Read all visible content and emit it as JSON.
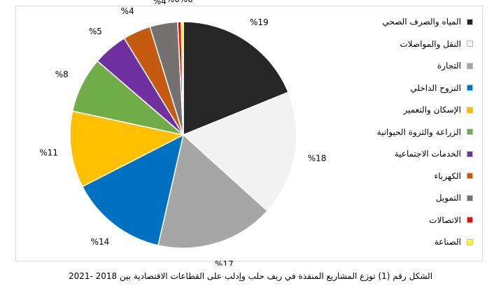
{
  "chart_data": {
    "type": "pie",
    "title": "",
    "categories": [
      "المياه والصرف الصحي",
      "النقل والمواصلات",
      "التجارة",
      "النزوح الداخلي",
      "الإسكان والتعمير",
      "الزراعة والثروة الحيوانية",
      "الخدمات الاجتماعية",
      "الكهرباء",
      "التمويل",
      "الاتصالات",
      "الصناعة"
    ],
    "values": [
      19,
      18,
      17,
      14,
      11,
      8,
      5,
      4,
      4,
      0.5,
      0.3
    ],
    "labels": [
      "%19",
      "%18",
      "%17",
      "%14",
      "%11",
      "%8",
      "%5",
      "%4",
      "%4",
      "%0",
      "%0"
    ],
    "colors": [
      "#262626",
      "#f2f2f2",
      "#a6a6a6",
      "#0070c0",
      "#ffc000",
      "#70ad47",
      "#7030a0",
      "#c55a11",
      "#767171",
      "#ff0000",
      "#ffff00"
    ],
    "legend_position": "right"
  },
  "caption": "الشكل رقم (1) توزع المشاريع المنفذة في ريف حلب وإدلب على القطاعات الاقتصادية بين 2018 -2021"
}
